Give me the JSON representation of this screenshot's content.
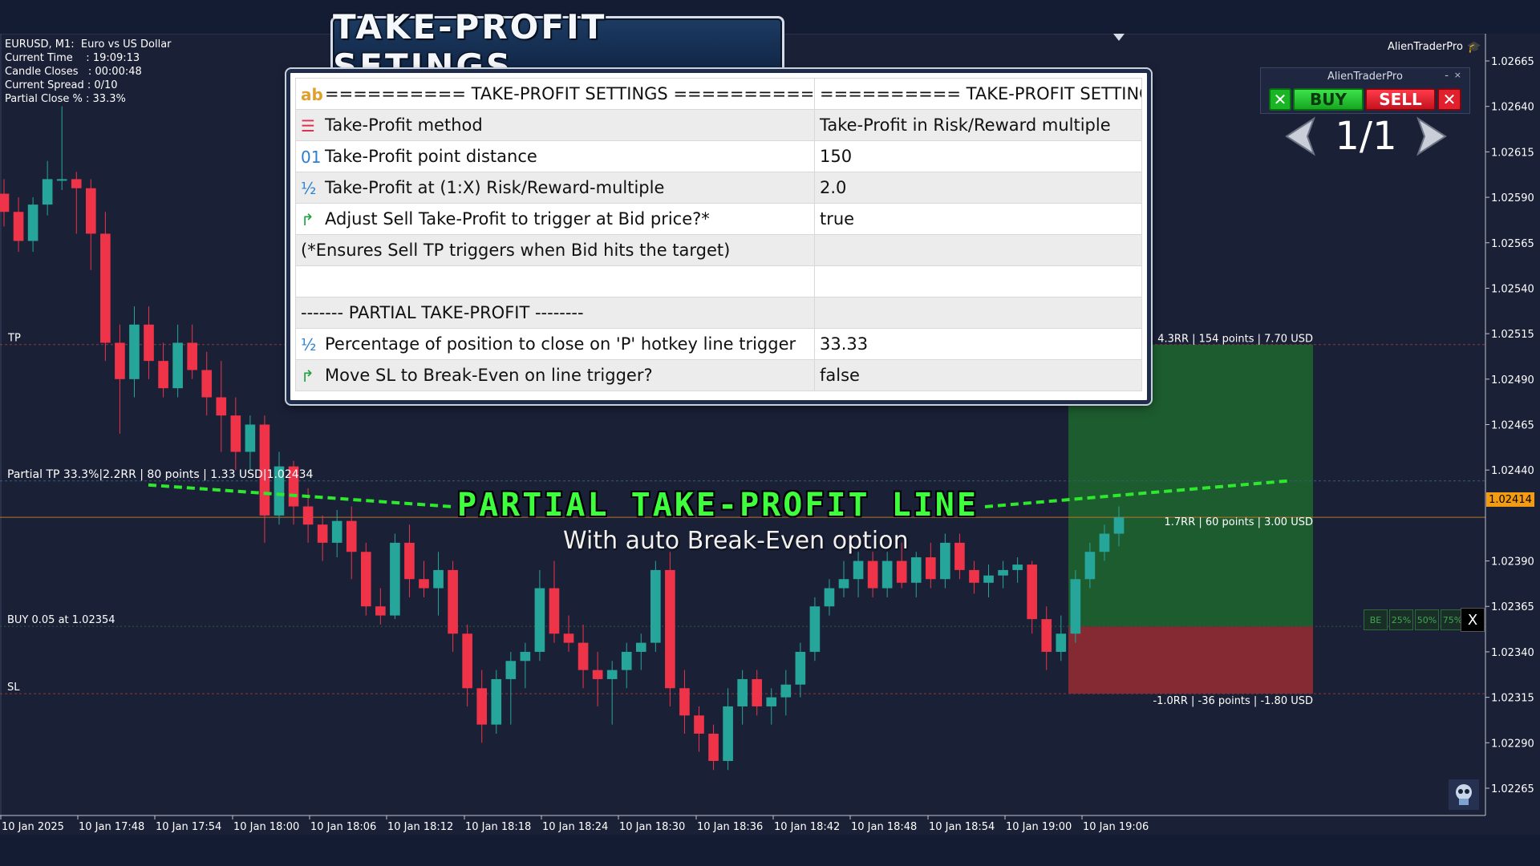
{
  "title_banner": "TAKE-PROFIT SETINGS",
  "chart_info": {
    "symbol": "EURUSD, M1:  Euro vs US Dollar",
    "current_time": "Current Time    : 19:09:13",
    "candle_closes": "Candle Closes   : 00:00:48",
    "current_spread": "Current Spread : 0/10",
    "partial_close": "Partial Close % : 33.3%"
  },
  "brand": "AlienTraderPro",
  "panel": {
    "title": "AlienTraderPro",
    "minimize": "-",
    "close": "×",
    "buy_label": "BUY",
    "sell_label": "SELL",
    "close_green": "✕",
    "close_red": "✕",
    "pager_prev": "❮",
    "pager_count": "1/1",
    "pager_next": "❯"
  },
  "settings": {
    "rows": [
      {
        "icon": "ab",
        "name": "========== TAKE-PROFIT SETTINGS ==========",
        "value": "========== TAKE-PROFIT SETTINGS"
      },
      {
        "icon": "☰",
        "name": "Take-Profit method",
        "value": "Take-Profit in Risk/Reward multiple"
      },
      {
        "icon": "01",
        "name": "Take-Profit point distance",
        "value": "150"
      },
      {
        "icon": "½",
        "name": "Take-Profit at (1:X) Risk/Reward-multiple",
        "value": "2.0"
      },
      {
        "icon": "↱",
        "name": "Adjust Sell Take-Profit to trigger at Bid price?*",
        "value": "true"
      },
      {
        "icon": "",
        "name": "(*Ensures Sell TP triggers when Bid hits the target)",
        "value": ""
      },
      {
        "icon": "",
        "name": "",
        "value": ""
      },
      {
        "icon": "",
        "name": "------- PARTIAL TAKE-PROFIT --------",
        "value": ""
      },
      {
        "icon": "½",
        "name": "Percentage of position to close on 'P' hotkey line trigger",
        "value": "33.33"
      },
      {
        "icon": "↱",
        "name": "Move SL to Break-Even on line trigger?",
        "value": "false"
      }
    ]
  },
  "annotations": {
    "heading": "PARTIAL TAKE-PROFIT LINE",
    "subheading": "With auto Break-Even option"
  },
  "lines": {
    "tp": "TP",
    "partial_tp": "Partial TP 33.3%|2.2RR | 80 points | 1.33 USD|1.02434",
    "buy": "BUY 0.05 at 1.02354",
    "sl": "SL",
    "tp_right": "4.3RR | 154 points | 7.70 USD",
    "mid_right": "1.7RR | 60 points | 3.00 USD",
    "sl_right": "-1.0RR | -36 points | -1.80 USD"
  },
  "be_buttons": [
    "BE",
    "25%",
    "50%",
    "75%"
  ],
  "be_close": "X",
  "current_price": "1.02414",
  "colors": {
    "bull": "#26a69a",
    "bear": "#ef3349",
    "background": "#1a2036",
    "profit_zone": "#1e6b2e",
    "loss_zone": "#8b2a33",
    "partial_line": "#2ee82e"
  },
  "chart_data": {
    "type": "candlestick",
    "y_ticks": [
      "1.02665",
      "1.02640",
      "1.02615",
      "1.02590",
      "1.02565",
      "1.02540",
      "1.02515",
      "1.02490",
      "1.02465",
      "1.02440",
      "1.02390",
      "1.02365",
      "1.02340",
      "1.02315",
      "1.02290",
      "1.02265"
    ],
    "x_ticks": [
      "10 Jan 2025",
      "10 Jan 17:48",
      "10 Jan 17:54",
      "10 Jan 18:00",
      "10 Jan 18:06",
      "10 Jan 18:12",
      "10 Jan 18:18",
      "10 Jan 18:24",
      "10 Jan 18:30",
      "10 Jan 18:36",
      "10 Jan 18:42",
      "10 Jan 18:48",
      "10 Jan 18:54",
      "10 Jan 19:00",
      "10 Jan 19:06"
    ],
    "ylim": [
      1.0225,
      1.0268
    ],
    "levels": {
      "tp": 1.02509,
      "partial_tp": 1.02434,
      "buy": 1.02354,
      "sl": 1.02317,
      "current": 1.02414
    },
    "candles": [
      [
        1.02592,
        1.026,
        1.02574,
        1.02582
      ],
      [
        1.02582,
        1.0259,
        1.0256,
        1.02566
      ],
      [
        1.02566,
        1.0259,
        1.0256,
        1.02586
      ],
      [
        1.02586,
        1.0261,
        1.0258,
        1.026
      ],
      [
        1.026,
        1.0264,
        1.02594,
        1.026
      ],
      [
        1.026,
        1.02604,
        1.0257,
        1.02595
      ],
      [
        1.02595,
        1.026,
        1.0255,
        1.0257
      ],
      [
        1.0257,
        1.02582,
        1.025,
        1.0251
      ],
      [
        1.0251,
        1.0252,
        1.0246,
        1.0249
      ],
      [
        1.0249,
        1.0253,
        1.0248,
        1.0252
      ],
      [
        1.0252,
        1.0253,
        1.0249,
        1.025
      ],
      [
        1.025,
        1.0251,
        1.0248,
        1.02485
      ],
      [
        1.02485,
        1.0252,
        1.0248,
        1.0251
      ],
      [
        1.0251,
        1.0252,
        1.0249,
        1.02495
      ],
      [
        1.02495,
        1.02505,
        1.0247,
        1.0248
      ],
      [
        1.0248,
        1.025,
        1.0245,
        1.0247
      ],
      [
        1.0247,
        1.0248,
        1.0244,
        1.0245
      ],
      [
        1.0245,
        1.0247,
        1.0244,
        1.02465
      ],
      [
        1.02465,
        1.0247,
        1.024,
        1.02415
      ],
      [
        1.02415,
        1.0245,
        1.0241,
        1.02442
      ],
      [
        1.02442,
        1.02445,
        1.0241,
        1.0242
      ],
      [
        1.0242,
        1.0243,
        1.024,
        1.0241
      ],
      [
        1.0241,
        1.02415,
        1.0239,
        1.024
      ],
      [
        1.024,
        1.02418,
        1.02392,
        1.02412
      ],
      [
        1.02412,
        1.0242,
        1.0238,
        1.02395
      ],
      [
        1.02395,
        1.024,
        1.0236,
        1.02365
      ],
      [
        1.02365,
        1.02375,
        1.02355,
        1.0236
      ],
      [
        1.0236,
        1.02405,
        1.02358,
        1.024
      ],
      [
        1.024,
        1.0241,
        1.0237,
        1.0238
      ],
      [
        1.0238,
        1.0239,
        1.0237,
        1.02375
      ],
      [
        1.02375,
        1.02395,
        1.0236,
        1.02385
      ],
      [
        1.02385,
        1.0239,
        1.0234,
        1.0235
      ],
      [
        1.0235,
        1.02355,
        1.0231,
        1.0232
      ],
      [
        1.0232,
        1.0233,
        1.0229,
        1.023
      ],
      [
        1.023,
        1.0233,
        1.02295,
        1.02325
      ],
      [
        1.02325,
        1.0234,
        1.023,
        1.02335
      ],
      [
        1.02335,
        1.02345,
        1.0232,
        1.0234
      ],
      [
        1.0234,
        1.02385,
        1.02335,
        1.02375
      ],
      [
        1.02375,
        1.0239,
        1.02345,
        1.0235
      ],
      [
        1.0235,
        1.0236,
        1.0234,
        1.02345
      ],
      [
        1.02345,
        1.02355,
        1.0232,
        1.0233
      ],
      [
        1.0233,
        1.0234,
        1.0231,
        1.02325
      ],
      [
        1.02325,
        1.02335,
        1.023,
        1.0233
      ],
      [
        1.0233,
        1.02345,
        1.0232,
        1.0234
      ],
      [
        1.0234,
        1.0235,
        1.0233,
        1.02345
      ],
      [
        1.02345,
        1.0239,
        1.0234,
        1.02385
      ],
      [
        1.02385,
        1.02395,
        1.0231,
        1.0232
      ],
      [
        1.0232,
        1.0233,
        1.02295,
        1.02305
      ],
      [
        1.02305,
        1.0231,
        1.02285,
        1.02295
      ],
      [
        1.02295,
        1.023,
        1.02275,
        1.0228
      ],
      [
        1.0228,
        1.0232,
        1.02275,
        1.0231
      ],
      [
        1.0231,
        1.0233,
        1.023,
        1.02325
      ],
      [
        1.02325,
        1.0233,
        1.02305,
        1.0231
      ],
      [
        1.0231,
        1.0232,
        1.023,
        1.02315
      ],
      [
        1.02315,
        1.0233,
        1.02305,
        1.02322
      ],
      [
        1.02322,
        1.02345,
        1.02315,
        1.0234
      ],
      [
        1.0234,
        1.0237,
        1.02335,
        1.02365
      ],
      [
        1.02365,
        1.0238,
        1.0236,
        1.02375
      ],
      [
        1.02375,
        1.0239,
        1.0237,
        1.0238
      ],
      [
        1.0238,
        1.02395,
        1.0237,
        1.0239
      ],
      [
        1.0239,
        1.02395,
        1.0237,
        1.02375
      ],
      [
        1.02375,
        1.02395,
        1.0237,
        1.0239
      ],
      [
        1.0239,
        1.024,
        1.02375,
        1.02378
      ],
      [
        1.02378,
        1.02395,
        1.0237,
        1.02392
      ],
      [
        1.02392,
        1.024,
        1.02375,
        1.0238
      ],
      [
        1.0238,
        1.02405,
        1.02375,
        1.024
      ],
      [
        1.024,
        1.02405,
        1.0238,
        1.02385
      ],
      [
        1.02385,
        1.0239,
        1.02372,
        1.02378
      ],
      [
        1.02378,
        1.02388,
        1.0237,
        1.02382
      ],
      [
        1.02382,
        1.0239,
        1.02375,
        1.02385
      ],
      [
        1.02385,
        1.02392,
        1.02378,
        1.02388
      ],
      [
        1.02388,
        1.0239,
        1.0235,
        1.02358
      ],
      [
        1.02358,
        1.02365,
        1.0233,
        1.0234
      ],
      [
        1.0234,
        1.0236,
        1.02335,
        1.0235
      ],
      [
        1.0235,
        1.02385,
        1.02345,
        1.0238
      ],
      [
        1.0238,
        1.024,
        1.02375,
        1.02395
      ],
      [
        1.02395,
        1.0241,
        1.0239,
        1.02405
      ],
      [
        1.02405,
        1.0242,
        1.02398,
        1.02414
      ]
    ]
  }
}
